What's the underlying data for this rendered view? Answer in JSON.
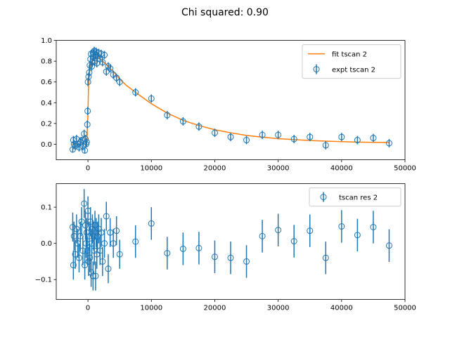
{
  "figure": {
    "title": "Chi squared: 0.90"
  },
  "colors": {
    "data": "#1f77b4",
    "fit": "#ff7f0e",
    "axes": "#000000",
    "legend_frame": "#cccccc"
  },
  "chart_data": [
    {
      "type": "scatter",
      "xlim": [
        -5000,
        50000
      ],
      "ylim": [
        -0.15,
        1.0
      ],
      "xticks": [
        0,
        10000,
        20000,
        30000,
        40000,
        50000
      ],
      "yticks": [
        0.0,
        0.2,
        0.4,
        0.6,
        0.8,
        1.0
      ],
      "xticklabels": [
        "0",
        "10000",
        "20000",
        "30000",
        "40000",
        "50000"
      ],
      "yticklabels": [
        "0.0",
        "0.2",
        "0.4",
        "0.6",
        "0.8",
        "1.0"
      ],
      "legend_position": "top-right",
      "legend": [
        "fit tscan 2",
        "expt tscan 2"
      ],
      "series": [
        {
          "name": "fit tscan 2",
          "kind": "line",
          "color": "#ff7f0e",
          "x": [
            -2500,
            -1000,
            -400,
            -150,
            0,
            100,
            300,
            600,
            1000,
            1500,
            2000,
            2500,
            3000,
            4000,
            5000,
            6000,
            7500,
            10000,
            12500,
            15000,
            17500,
            20000,
            22500,
            25000,
            27500,
            30000,
            32500,
            35000,
            37500,
            40000,
            42500,
            45000,
            47500
          ],
          "y": [
            0.0,
            0.0,
            0.0,
            0.05,
            0.3,
            0.58,
            0.72,
            0.8,
            0.84,
            0.84,
            0.82,
            0.79,
            0.76,
            0.7,
            0.63,
            0.57,
            0.5,
            0.39,
            0.3,
            0.23,
            0.18,
            0.14,
            0.11,
            0.085,
            0.068,
            0.054,
            0.044,
            0.036,
            0.03,
            0.025,
            0.021,
            0.018,
            0.016
          ]
        },
        {
          "name": "expt tscan 2",
          "kind": "errorbar",
          "color": "#1f77b4",
          "points": [
            {
              "x": -2400,
              "y": -0.05,
              "err": 0.03
            },
            {
              "x": -2300,
              "y": 0.04,
              "err": 0.04
            },
            {
              "x": -2200,
              "y": 0.0,
              "err": 0.04
            },
            {
              "x": -2000,
              "y": -0.02,
              "err": 0.03
            },
            {
              "x": -1800,
              "y": 0.05,
              "err": 0.04
            },
            {
              "x": -1600,
              "y": 0.0,
              "err": 0.03
            },
            {
              "x": -1400,
              "y": -0.03,
              "err": 0.04
            },
            {
              "x": -1200,
              "y": 0.02,
              "err": 0.04
            },
            {
              "x": -1000,
              "y": 0.04,
              "err": 0.03
            },
            {
              "x": -800,
              "y": -0.02,
              "err": 0.04
            },
            {
              "x": -600,
              "y": 0.1,
              "err": 0.04
            },
            {
              "x": -500,
              "y": -0.06,
              "err": 0.03
            },
            {
              "x": -400,
              "y": 0.05,
              "err": 0.04
            },
            {
              "x": -300,
              "y": 0.0,
              "err": 0.03
            },
            {
              "x": -200,
              "y": 0.02,
              "err": 0.04
            },
            {
              "x": -100,
              "y": 0.19,
              "err": 0.04
            },
            {
              "x": -50,
              "y": 0.32,
              "err": 0.04
            },
            {
              "x": 0,
              "y": 0.6,
              "err": 0.04
            },
            {
              "x": 100,
              "y": 0.65,
              "err": 0.04
            },
            {
              "x": 200,
              "y": 0.69,
              "err": 0.04
            },
            {
              "x": 300,
              "y": 0.76,
              "err": 0.04
            },
            {
              "x": 400,
              "y": 0.82,
              "err": 0.04
            },
            {
              "x": 500,
              "y": 0.87,
              "err": 0.04
            },
            {
              "x": 600,
              "y": 0.75,
              "err": 0.04
            },
            {
              "x": 700,
              "y": 0.79,
              "err": 0.04
            },
            {
              "x": 800,
              "y": 0.88,
              "err": 0.04
            },
            {
              "x": 900,
              "y": 0.84,
              "err": 0.04
            },
            {
              "x": 1000,
              "y": 0.9,
              "err": 0.04
            },
            {
              "x": 1100,
              "y": 0.8,
              "err": 0.04
            },
            {
              "x": 1200,
              "y": 0.86,
              "err": 0.04
            },
            {
              "x": 1300,
              "y": 0.89,
              "err": 0.04
            },
            {
              "x": 1400,
              "y": 0.78,
              "err": 0.04
            },
            {
              "x": 1500,
              "y": 0.85,
              "err": 0.04
            },
            {
              "x": 1700,
              "y": 0.88,
              "err": 0.04
            },
            {
              "x": 1900,
              "y": 0.82,
              "err": 0.04
            },
            {
              "x": 2100,
              "y": 0.87,
              "err": 0.04
            },
            {
              "x": 2300,
              "y": 0.79,
              "err": 0.04
            },
            {
              "x": 2600,
              "y": 0.86,
              "err": 0.04
            },
            {
              "x": 2900,
              "y": 0.7,
              "err": 0.04
            },
            {
              "x": 3200,
              "y": 0.75,
              "err": 0.04
            },
            {
              "x": 3500,
              "y": 0.73,
              "err": 0.04
            },
            {
              "x": 4000,
              "y": 0.67,
              "err": 0.04
            },
            {
              "x": 4500,
              "y": 0.64,
              "err": 0.04
            },
            {
              "x": 5000,
              "y": 0.6,
              "err": 0.04
            },
            {
              "x": 7500,
              "y": 0.5,
              "err": 0.04
            },
            {
              "x": 10000,
              "y": 0.44,
              "err": 0.04
            },
            {
              "x": 12500,
              "y": 0.28,
              "err": 0.04
            },
            {
              "x": 15000,
              "y": 0.22,
              "err": 0.04
            },
            {
              "x": 17500,
              "y": 0.17,
              "err": 0.04
            },
            {
              "x": 20000,
              "y": 0.11,
              "err": 0.04
            },
            {
              "x": 22500,
              "y": 0.07,
              "err": 0.04
            },
            {
              "x": 25000,
              "y": 0.04,
              "err": 0.04
            },
            {
              "x": 27500,
              "y": 0.09,
              "err": 0.04
            },
            {
              "x": 30000,
              "y": 0.09,
              "err": 0.04
            },
            {
              "x": 32500,
              "y": 0.05,
              "err": 0.04
            },
            {
              "x": 35000,
              "y": 0.07,
              "err": 0.04
            },
            {
              "x": 37500,
              "y": -0.01,
              "err": 0.04
            },
            {
              "x": 40000,
              "y": 0.07,
              "err": 0.04
            },
            {
              "x": 42500,
              "y": 0.04,
              "err": 0.04
            },
            {
              "x": 45000,
              "y": 0.06,
              "err": 0.04
            },
            {
              "x": 47500,
              "y": 0.01,
              "err": 0.04
            }
          ]
        }
      ]
    },
    {
      "type": "scatter",
      "xlim": [
        -5000,
        50000
      ],
      "ylim": [
        -0.155,
        0.165
      ],
      "xticks": [
        0,
        10000,
        20000,
        30000,
        40000,
        50000
      ],
      "yticks": [
        -0.1,
        0.0,
        0.1
      ],
      "xticklabels": [
        "0",
        "10000",
        "20000",
        "30000",
        "40000",
        "50000"
      ],
      "yticklabels": [
        "−0.1",
        "0.0",
        "0.1"
      ],
      "legend_position": "top-right",
      "legend": [
        "tscan res 2"
      ],
      "series": [
        {
          "name": "tscan res 2",
          "kind": "errorbar",
          "color": "#1f77b4",
          "points": [
            {
              "x": -2400,
              "y": 0.045,
              "err": 0.04
            },
            {
              "x": -2300,
              "y": -0.06,
              "err": 0.04
            },
            {
              "x": -2200,
              "y": 0.02,
              "err": 0.04
            },
            {
              "x": -2000,
              "y": -0.03,
              "err": 0.04
            },
            {
              "x": -1800,
              "y": 0.04,
              "err": 0.04
            },
            {
              "x": -1600,
              "y": 0.0,
              "err": 0.04
            },
            {
              "x": -1400,
              "y": -0.04,
              "err": 0.04
            },
            {
              "x": -1200,
              "y": 0.02,
              "err": 0.04
            },
            {
              "x": -1000,
              "y": 0.06,
              "err": 0.04
            },
            {
              "x": -800,
              "y": -0.02,
              "err": 0.04
            },
            {
              "x": -600,
              "y": 0.11,
              "err": 0.04
            },
            {
              "x": -500,
              "y": -0.06,
              "err": 0.04
            },
            {
              "x": -400,
              "y": 0.05,
              "err": 0.04
            },
            {
              "x": -300,
              "y": 0.0,
              "err": 0.04
            },
            {
              "x": -200,
              "y": 0.03,
              "err": 0.04
            },
            {
              "x": -100,
              "y": -0.02,
              "err": 0.04
            },
            {
              "x": 0,
              "y": 0.09,
              "err": 0.04
            },
            {
              "x": 100,
              "y": -0.05,
              "err": 0.04
            },
            {
              "x": 200,
              "y": 0.02,
              "err": 0.04
            },
            {
              "x": 300,
              "y": -0.04,
              "err": 0.04
            },
            {
              "x": 400,
              "y": 0.06,
              "err": 0.04
            },
            {
              "x": 500,
              "y": -0.08,
              "err": 0.04
            },
            {
              "x": 600,
              "y": 0.0,
              "err": 0.04
            },
            {
              "x": 700,
              "y": 0.04,
              "err": 0.04
            },
            {
              "x": 800,
              "y": -0.09,
              "err": 0.04
            },
            {
              "x": 900,
              "y": 0.02,
              "err": 0.04
            },
            {
              "x": 1000,
              "y": -0.02,
              "err": 0.04
            },
            {
              "x": 1100,
              "y": 0.05,
              "err": 0.04
            },
            {
              "x": 1200,
              "y": -0.09,
              "err": 0.04
            },
            {
              "x": 1300,
              "y": 0.03,
              "err": 0.04
            },
            {
              "x": 1400,
              "y": -0.03,
              "err": 0.04
            },
            {
              "x": 1500,
              "y": 0.02,
              "err": 0.04
            },
            {
              "x": 1700,
              "y": 0.04,
              "err": 0.04
            },
            {
              "x": 1900,
              "y": -0.02,
              "err": 0.04
            },
            {
              "x": 2100,
              "y": 0.03,
              "err": 0.04
            },
            {
              "x": 2300,
              "y": -0.05,
              "err": 0.04
            },
            {
              "x": 2600,
              "y": 0.0,
              "err": 0.04
            },
            {
              "x": 2900,
              "y": 0.075,
              "err": 0.04
            },
            {
              "x": 3200,
              "y": -0.07,
              "err": 0.04
            },
            {
              "x": 3500,
              "y": 0.03,
              "err": 0.04
            },
            {
              "x": 4000,
              "y": 0.0,
              "err": 0.04
            },
            {
              "x": 4500,
              "y": 0.035,
              "err": 0.04
            },
            {
              "x": 5000,
              "y": -0.03,
              "err": 0.04
            },
            {
              "x": 7500,
              "y": 0.005,
              "err": 0.045
            },
            {
              "x": 10000,
              "y": 0.055,
              "err": 0.045
            },
            {
              "x": 12500,
              "y": -0.027,
              "err": 0.045
            },
            {
              "x": 15000,
              "y": -0.015,
              "err": 0.045
            },
            {
              "x": 17500,
              "y": -0.013,
              "err": 0.045
            },
            {
              "x": 20000,
              "y": -0.037,
              "err": 0.045
            },
            {
              "x": 22500,
              "y": -0.04,
              "err": 0.045
            },
            {
              "x": 25000,
              "y": -0.05,
              "err": 0.045
            },
            {
              "x": 27500,
              "y": 0.02,
              "err": 0.045
            },
            {
              "x": 30000,
              "y": 0.037,
              "err": 0.045
            },
            {
              "x": 32500,
              "y": 0.006,
              "err": 0.045
            },
            {
              "x": 35000,
              "y": 0.035,
              "err": 0.045
            },
            {
              "x": 37500,
              "y": -0.04,
              "err": 0.045
            },
            {
              "x": 40000,
              "y": 0.047,
              "err": 0.045
            },
            {
              "x": 42500,
              "y": 0.023,
              "err": 0.045
            },
            {
              "x": 45000,
              "y": 0.045,
              "err": 0.045
            },
            {
              "x": 47500,
              "y": -0.006,
              "err": 0.045
            }
          ]
        }
      ]
    }
  ]
}
